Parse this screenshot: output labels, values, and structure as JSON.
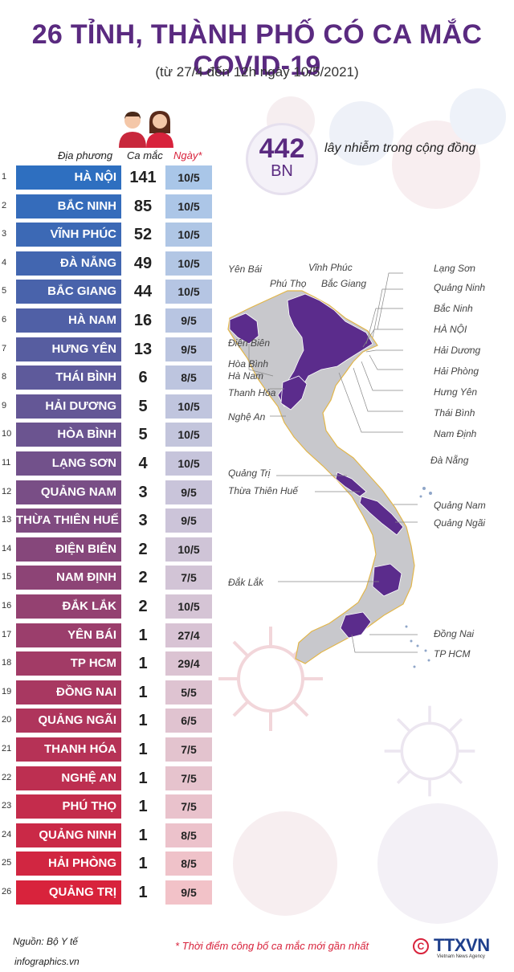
{
  "title": "26 TỈNH, THÀNH PHỐ CÓ CA MẮC COVID-19",
  "subtitle": "(từ 27/4 đến 12h ngày 10/5/2021)",
  "headers": {
    "locality": "Địa phương",
    "cases": "Ca mắc",
    "date": "Ngày*"
  },
  "total": {
    "number": "442",
    "unit": "BN",
    "label": "lây nhiễm trong cộng đồng"
  },
  "chart_data": {
    "type": "table",
    "columns": [
      "Địa phương",
      "Ca mắc",
      "Ngày*"
    ],
    "rows": [
      {
        "rank": "1",
        "name": "HÀ NỘI",
        "cases": 141,
        "date": "10/5"
      },
      {
        "rank": "2",
        "name": "BẮC NINH",
        "cases": 85,
        "date": "10/5"
      },
      {
        "rank": "3",
        "name": "VĨNH PHÚC",
        "cases": 52,
        "date": "10/5"
      },
      {
        "rank": "4",
        "name": "ĐÀ NẴNG",
        "cases": 49,
        "date": "10/5"
      },
      {
        "rank": "5",
        "name": "BẮC GIANG",
        "cases": 44,
        "date": "10/5"
      },
      {
        "rank": "6",
        "name": "HÀ NAM",
        "cases": 16,
        "date": "9/5"
      },
      {
        "rank": "7",
        "name": "HƯNG YÊN",
        "cases": 13,
        "date": "9/5"
      },
      {
        "rank": "8",
        "name": "THÁI BÌNH",
        "cases": 6,
        "date": "8/5"
      },
      {
        "rank": "9",
        "name": "HẢI DƯƠNG",
        "cases": 5,
        "date": "10/5"
      },
      {
        "rank": "10",
        "name": "HÒA BÌNH",
        "cases": 5,
        "date": "10/5"
      },
      {
        "rank": "11",
        "name": "LẠNG SƠN",
        "cases": 4,
        "date": "10/5"
      },
      {
        "rank": "12",
        "name": "QUẢNG NAM",
        "cases": 3,
        "date": "9/5"
      },
      {
        "rank": "13",
        "name": "THỪA THIÊN HUẾ",
        "cases": 3,
        "date": "9/5"
      },
      {
        "rank": "14",
        "name": "ĐIỆN BIÊN",
        "cases": 2,
        "date": "10/5"
      },
      {
        "rank": "15",
        "name": "NAM ĐỊNH",
        "cases": 2,
        "date": "7/5"
      },
      {
        "rank": "16",
        "name": "ĐẮK LẮK",
        "cases": 2,
        "date": "10/5"
      },
      {
        "rank": "17",
        "name": "YÊN BÁI",
        "cases": 1,
        "date": "27/4"
      },
      {
        "rank": "18",
        "name": "TP HCM",
        "cases": 1,
        "date": "29/4"
      },
      {
        "rank": "19",
        "name": "ĐỒNG NAI",
        "cases": 1,
        "date": "5/5"
      },
      {
        "rank": "20",
        "name": "QUẢNG NGÃI",
        "cases": 1,
        "date": "6/5"
      },
      {
        "rank": "21",
        "name": "THANH HÓA",
        "cases": 1,
        "date": "7/5"
      },
      {
        "rank": "22",
        "name": "NGHỆ AN",
        "cases": 1,
        "date": "7/5"
      },
      {
        "rank": "23",
        "name": "PHÚ THỌ",
        "cases": 1,
        "date": "7/5"
      },
      {
        "rank": "24",
        "name": "QUẢNG NINH",
        "cases": 1,
        "date": "8/5"
      },
      {
        "rank": "25",
        "name": "HẢI PHÒNG",
        "cases": 1,
        "date": "8/5"
      },
      {
        "rank": "26",
        "name": "QUẢNG TRỊ",
        "cases": 1,
        "date": "9/5"
      }
    ]
  },
  "map_labels": [
    {
      "text": "Yên Bái"
    },
    {
      "text": "Phú Thọ"
    },
    {
      "text": "Vĩnh Phúc"
    },
    {
      "text": "Bắc Giang"
    },
    {
      "text": "Lạng Sơn"
    },
    {
      "text": "Quảng Ninh"
    },
    {
      "text": "Bắc Ninh"
    },
    {
      "text": "HÀ NỘI"
    },
    {
      "text": "Điện Biên"
    },
    {
      "text": "Hải Dương"
    },
    {
      "text": "Hòa Bình"
    },
    {
      "text": "Hà Nam"
    },
    {
      "text": "Hải Phòng"
    },
    {
      "text": "Thanh Hóa"
    },
    {
      "text": "Hưng Yên"
    },
    {
      "text": "Nghệ An"
    },
    {
      "text": "Thái Bình"
    },
    {
      "text": "Nam Định"
    },
    {
      "text": "Đà Nẵng"
    },
    {
      "text": "Quảng Trị"
    },
    {
      "text": "Thừa Thiên Huế"
    },
    {
      "text": "Quảng Nam"
    },
    {
      "text": "Quảng Ngãi"
    },
    {
      "text": "Đắk Lắk"
    },
    {
      "text": "Đồng Nai"
    },
    {
      "text": "TP HCM"
    }
  ],
  "colors": {
    "title": "#5a2a80",
    "accent_red": "#d8233c",
    "map_highlight": "#5b2c8c",
    "map_base": "#c8c8cc",
    "date_cell": "#a9c6e8",
    "date_cell_bottom": "#f2c2c8",
    "name_top": "#2e6fc0",
    "name_bottom": "#d8233c"
  },
  "footer": {
    "source": "Nguồn: Bộ Y tế",
    "footnote": "* Thời điểm công bố ca mắc mới gần nhất",
    "website": "infographics.vn",
    "logo_text": "TTXVN",
    "logo_sub": "Vietnam News Agency"
  },
  "icons": [
    "male-person-icon",
    "female-person-icon",
    "copyright-icon",
    "virus-icon"
  ]
}
